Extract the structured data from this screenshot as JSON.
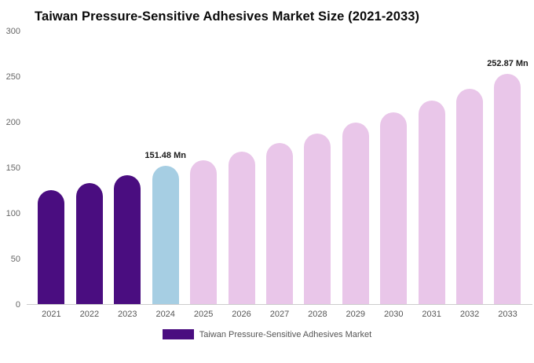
{
  "title": "Taiwan Pressure-Sensitive Adhesives Market Size (2021-2033)",
  "legend": {
    "label": "Taiwan Pressure-Sensitive Adhesives Market",
    "color": "#4a0d80"
  },
  "colors": {
    "bar_dark_purple": "#4a0d80",
    "bar_highlight_blue": "#a6cee3",
    "bar_forecast_pink": "#e9c6e9",
    "axis_text": "#666666",
    "axis_line": "#cccccc"
  },
  "chart_data": {
    "type": "bar",
    "title": "Taiwan Pressure-Sensitive Adhesives Market Size (2021-2033)",
    "categories": [
      "2021",
      "2022",
      "2023",
      "2024",
      "2025",
      "2026",
      "2027",
      "2028",
      "2029",
      "2030",
      "2031",
      "2032",
      "2033"
    ],
    "values": [
      125,
      133,
      141,
      151.48,
      158,
      167,
      177,
      187,
      199,
      210,
      223,
      236,
      252.87
    ],
    "bar_colors": [
      "#4a0d80",
      "#4a0d80",
      "#4a0d80",
      "#a6cee3",
      "#e9c6e9",
      "#e9c6e9",
      "#e9c6e9",
      "#e9c6e9",
      "#e9c6e9",
      "#e9c6e9",
      "#e9c6e9",
      "#e9c6e9",
      "#e9c6e9"
    ],
    "xlabel": "",
    "ylabel": "",
    "ylim": [
      0,
      300
    ],
    "yticks": [
      0,
      50,
      100,
      150,
      200,
      250,
      300
    ],
    "grid": false,
    "legend_position": "bottom",
    "annotations": [
      {
        "category": "2024",
        "text": "151.48 Mn"
      },
      {
        "category": "2033",
        "text": "252.87 Mn"
      }
    ]
  }
}
